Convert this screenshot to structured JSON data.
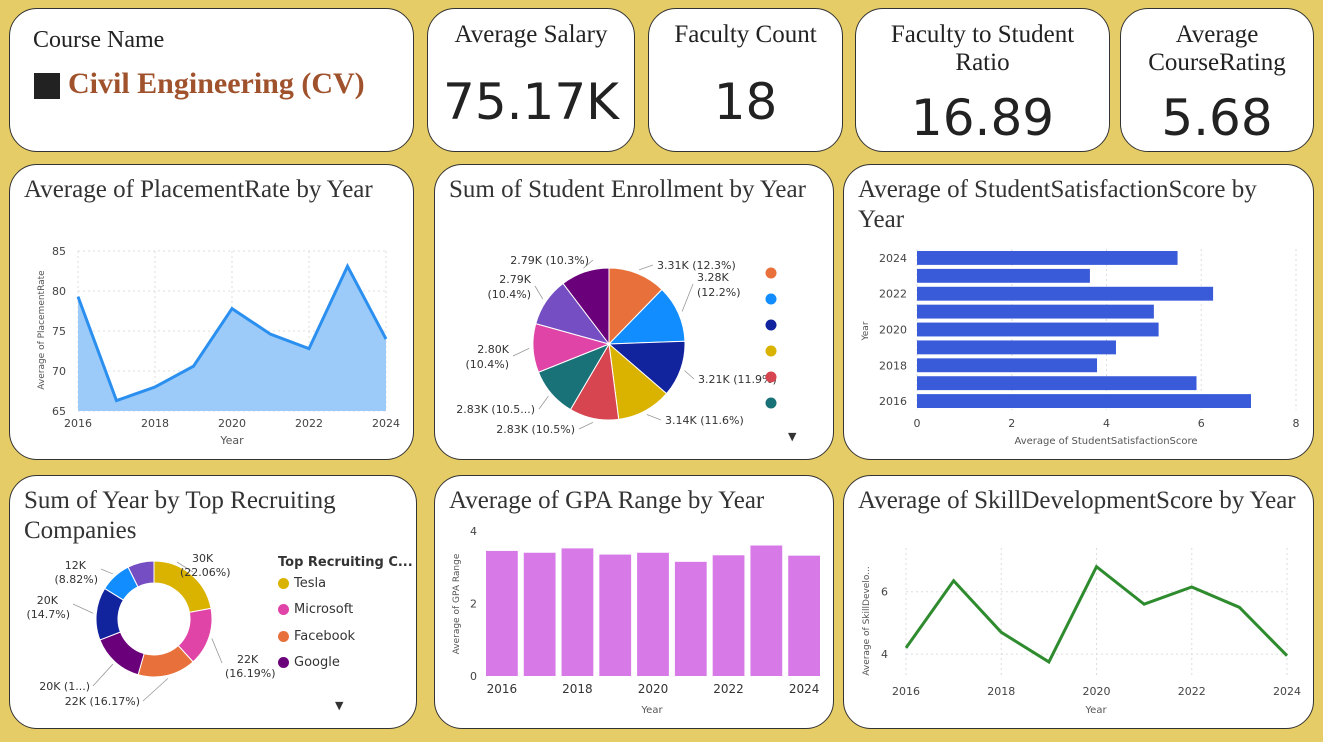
{
  "course": {
    "label": "Course Name",
    "value": "Civil Engineering (CV)",
    "swatch": "#222222",
    "value_color": "#a0522d"
  },
  "kpis": [
    {
      "title": "Average Salary",
      "value": "75.17K"
    },
    {
      "title": "Faculty Count",
      "value": "18"
    },
    {
      "title": "Faculty to Student Ratio",
      "value": "16.89"
    },
    {
      "title": "Average CourseRating",
      "value": "5.68"
    }
  ],
  "colors": {
    "area_fill": "#9ccbf9",
    "area_line": "#2b8ff0",
    "bar_blue": "#3a5bd9",
    "bar_violet": "#d77ae8",
    "line_green": "#2e8b2e"
  },
  "chart_data": [
    {
      "id": "placement",
      "type": "area",
      "title": "Average of PlacementRate by Year",
      "xlabel": "Year",
      "ylabel": "Average of PlacementRate",
      "x": [
        2016,
        2017,
        2018,
        2019,
        2020,
        2021,
        2022,
        2023,
        2024
      ],
      "values": [
        79.3,
        66.3,
        68.0,
        70.6,
        77.8,
        74.6,
        72.8,
        83.1,
        74.0
      ],
      "ylim": [
        65,
        85
      ],
      "yticks": [
        "85",
        "80",
        "75",
        "70",
        "65"
      ],
      "xticks": [
        "2016",
        "2018",
        "2020",
        "2022",
        "2024"
      ],
      "grid": true
    },
    {
      "id": "enrollment",
      "type": "pie",
      "title": "Sum of Student Enrollment by Year",
      "slices": [
        {
          "value": 3.31,
          "label": "3.31K (12.3%)",
          "color": "#e8703a"
        },
        {
          "value": 3.28,
          "label": "3.28K (12.2%)",
          "color": "#118dff"
        },
        {
          "value": 3.21,
          "label": "3.21K (11.9%)",
          "color": "#12239e"
        },
        {
          "value": 3.14,
          "label": "3.14K (11.6%)",
          "color": "#d9b300"
        },
        {
          "value": 2.83,
          "label": "2.83K (10.5%)",
          "color": "#d64550"
        },
        {
          "value": 2.83,
          "label": "2.83K (10.5...)",
          "color": "#197278"
        },
        {
          "value": 2.8,
          "label": "2.80K (10.4%)",
          "color": "#e044a7"
        },
        {
          "value": 2.79,
          "label": "2.79K (10.4%)",
          "color": "#744ec2"
        },
        {
          "value": 2.79,
          "label": "2.79K (10.3%)",
          "color": "#6b007b"
        }
      ],
      "legend_colors": [
        "#e8703a",
        "#118dff",
        "#12239e",
        "#d9b300",
        "#d64550",
        "#197278"
      ]
    },
    {
      "id": "satisfaction",
      "type": "bar",
      "orientation": "horizontal",
      "title": "Average of StudentSatisfactionScore by Year",
      "xlabel": "Average of StudentSatisfactionScore",
      "ylabel": "Year",
      "categories": [
        2024,
        2023,
        2022,
        2021,
        2020,
        2019,
        2018,
        2017,
        2016
      ],
      "values": [
        5.5,
        3.65,
        6.25,
        5.0,
        5.1,
        4.2,
        3.8,
        5.9,
        7.05
      ],
      "ytick_labels": [
        "2024",
        "",
        "2022",
        "",
        "2020",
        "",
        "2018",
        "",
        "2016"
      ],
      "xlim": [
        0,
        8
      ],
      "xticks": [
        "0",
        "2",
        "4",
        "6",
        "8"
      ],
      "grid": true
    },
    {
      "id": "recruiters",
      "type": "donut",
      "title": "Sum of Year by Top Recruiting Companies",
      "legend_title": "Top Recruiting C...",
      "slices": [
        {
          "name": "Tesla",
          "value": 22.06,
          "label1": "30K",
          "label2": "(22.06%)",
          "color": "#d9b300"
        },
        {
          "name": "Microsoft",
          "value": 16.19,
          "label1": "22K",
          "label2": "(16.19%)",
          "color": "#e044a7"
        },
        {
          "name": "Facebook",
          "value": 16.17,
          "label1": "22K (16.17%)",
          "label2": "",
          "color": "#e8703a"
        },
        {
          "name": "Google",
          "value": 14.7,
          "label1": "20K (1...)",
          "label2": "",
          "color": "#6b007b"
        },
        {
          "name": "",
          "value": 14.7,
          "label1": "20K",
          "label2": "(14.7%)",
          "color": "#12239e"
        },
        {
          "name": "",
          "value": 8.82,
          "label1": "12K",
          "label2": "(8.82%)",
          "color": "#118dff"
        },
        {
          "name": "",
          "value": 7.36,
          "label1": "",
          "label2": "",
          "color": "#744ec2"
        }
      ]
    },
    {
      "id": "gpa",
      "type": "bar",
      "title": "Average of GPA Range by Year",
      "xlabel": "Year",
      "ylabel": "Average of GPA Range",
      "categories": [
        2016,
        2017,
        2018,
        2019,
        2020,
        2021,
        2022,
        2023,
        2024
      ],
      "values": [
        3.45,
        3.4,
        3.52,
        3.35,
        3.4,
        3.15,
        3.33,
        3.6,
        3.32
      ],
      "ylim": [
        0,
        4
      ],
      "yticks": [
        "4",
        "2",
        "0"
      ],
      "xticks": [
        "2016",
        "2018",
        "2020",
        "2022",
        "2024"
      ]
    },
    {
      "id": "skill",
      "type": "line",
      "title": "Average of SkillDevelopmentScore by Year",
      "xlabel": "Year",
      "ylabel": "Average of SkillDevelo...",
      "x": [
        2016,
        2017,
        2018,
        2019,
        2020,
        2021,
        2022,
        2023,
        2024
      ],
      "values": [
        4.2,
        6.35,
        4.7,
        3.75,
        6.8,
        5.6,
        6.15,
        5.5,
        3.95
      ],
      "ylim": [
        3.3,
        7.4
      ],
      "yticks": [
        "6",
        "4"
      ],
      "xticks": [
        "2016",
        "2018",
        "2020",
        "2022",
        "2024"
      ],
      "grid": true
    }
  ]
}
